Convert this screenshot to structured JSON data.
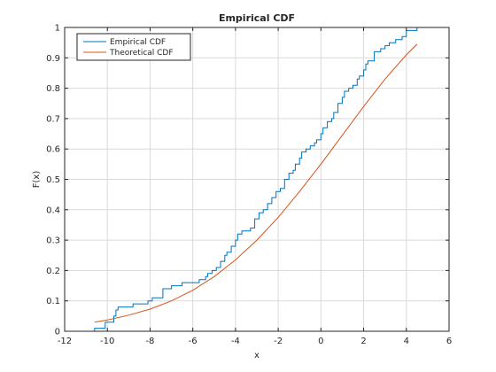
{
  "chart_data": {
    "type": "line",
    "title": "Empirical CDF",
    "xlabel": "x",
    "ylabel": "F(x)",
    "xlim": [
      -12,
      6
    ],
    "ylim": [
      0,
      1
    ],
    "xticks": [
      "-12",
      "-10",
      "-8",
      "-6",
      "-4",
      "-2",
      "0",
      "2",
      "4",
      "6"
    ],
    "yticks": [
      "0",
      "0.1",
      "0.2",
      "0.3",
      "0.4",
      "0.5",
      "0.6",
      "0.7",
      "0.8",
      "0.9",
      "1"
    ],
    "grid": true,
    "legend_position": "top-left",
    "series": [
      {
        "name": "Empirical CDF",
        "color": "#0072BD",
        "style": "stairs",
        "x": [
          -10.6,
          -10.1,
          -9.7,
          -9.6,
          -9.5,
          -9.2,
          -8.8,
          -8.1,
          -7.9,
          -7.4,
          -7.0,
          -6.5,
          -6.1,
          -5.7,
          -5.4,
          -5.3,
          -5.1,
          -4.9,
          -4.7,
          -4.5,
          -4.4,
          -4.2,
          -4.0,
          -3.9,
          -3.7,
          -3.3,
          -3.1,
          -2.9,
          -2.7,
          -2.5,
          -2.3,
          -2.1,
          -1.9,
          -1.7,
          -1.5,
          -1.3,
          -1.2,
          -1.0,
          -0.9,
          -0.7,
          -0.5,
          -0.3,
          -0.2,
          0.0,
          0.1,
          0.3,
          0.5,
          0.6,
          0.8,
          1.0,
          1.1,
          1.3,
          1.5,
          1.7,
          1.8,
          2.0,
          2.1,
          2.2,
          2.5,
          2.8,
          3.0,
          3.2,
          3.5,
          3.8,
          4.0,
          4.5
        ],
        "y": [
          0.01,
          0.03,
          0.05,
          0.07,
          0.08,
          0.08,
          0.09,
          0.1,
          0.11,
          0.14,
          0.15,
          0.16,
          0.16,
          0.17,
          0.18,
          0.19,
          0.2,
          0.21,
          0.23,
          0.25,
          0.26,
          0.28,
          0.3,
          0.32,
          0.33,
          0.34,
          0.37,
          0.39,
          0.4,
          0.42,
          0.44,
          0.46,
          0.47,
          0.5,
          0.52,
          0.53,
          0.55,
          0.57,
          0.59,
          0.6,
          0.61,
          0.62,
          0.63,
          0.65,
          0.67,
          0.69,
          0.7,
          0.72,
          0.75,
          0.77,
          0.79,
          0.8,
          0.81,
          0.83,
          0.84,
          0.86,
          0.88,
          0.89,
          0.92,
          0.93,
          0.94,
          0.95,
          0.96,
          0.97,
          0.99,
          1.0
        ]
      },
      {
        "name": "Theoretical CDF",
        "color": "#D95319",
        "style": "line",
        "x": [
          -10.6,
          -10,
          -9,
          -8,
          -7,
          -6,
          -5,
          -4,
          -3,
          -2,
          -1,
          0,
          1,
          2,
          3,
          4,
          4.5
        ],
        "y": [
          0.03,
          0.037,
          0.053,
          0.073,
          0.1,
          0.135,
          0.18,
          0.235,
          0.3,
          0.375,
          0.46,
          0.55,
          0.645,
          0.74,
          0.83,
          0.91,
          0.945
        ]
      }
    ]
  }
}
